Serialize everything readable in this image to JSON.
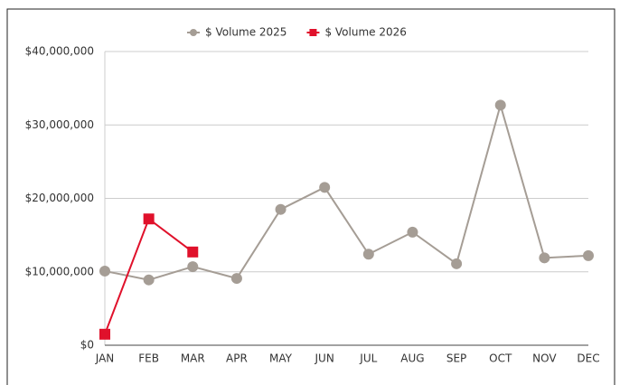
{
  "chart_data": {
    "type": "line",
    "categories": [
      "JAN",
      "FEB",
      "MAR",
      "APR",
      "MAY",
      "JUN",
      "JUL",
      "AUG",
      "SEP",
      "OCT",
      "NOV",
      "DEC"
    ],
    "series": [
      {
        "name": "$ Volume 2025",
        "color": "#a59d95",
        "marker": "circle",
        "values": [
          10100000,
          8900000,
          10700000,
          9100000,
          18500000,
          21500000,
          12400000,
          15400000,
          11100000,
          32700000,
          11900000,
          12200000
        ]
      },
      {
        "name": "$ Volume 2026",
        "color": "#e0112b",
        "marker": "square",
        "values": [
          1500000,
          17200000,
          12700000,
          null,
          null,
          null,
          null,
          null,
          null,
          null,
          null,
          null
        ]
      }
    ],
    "ylim": [
      0,
      40000000
    ],
    "yticks": [
      {
        "value": 0,
        "label": "$0"
      },
      {
        "value": 10000000,
        "label": "$10,000,000"
      },
      {
        "value": 20000000,
        "label": "$20,000,000"
      },
      {
        "value": 30000000,
        "label": "$30,000,000"
      },
      {
        "value": 40000000,
        "label": "$40,000,000"
      }
    ],
    "grid": true,
    "legend": "top"
  }
}
